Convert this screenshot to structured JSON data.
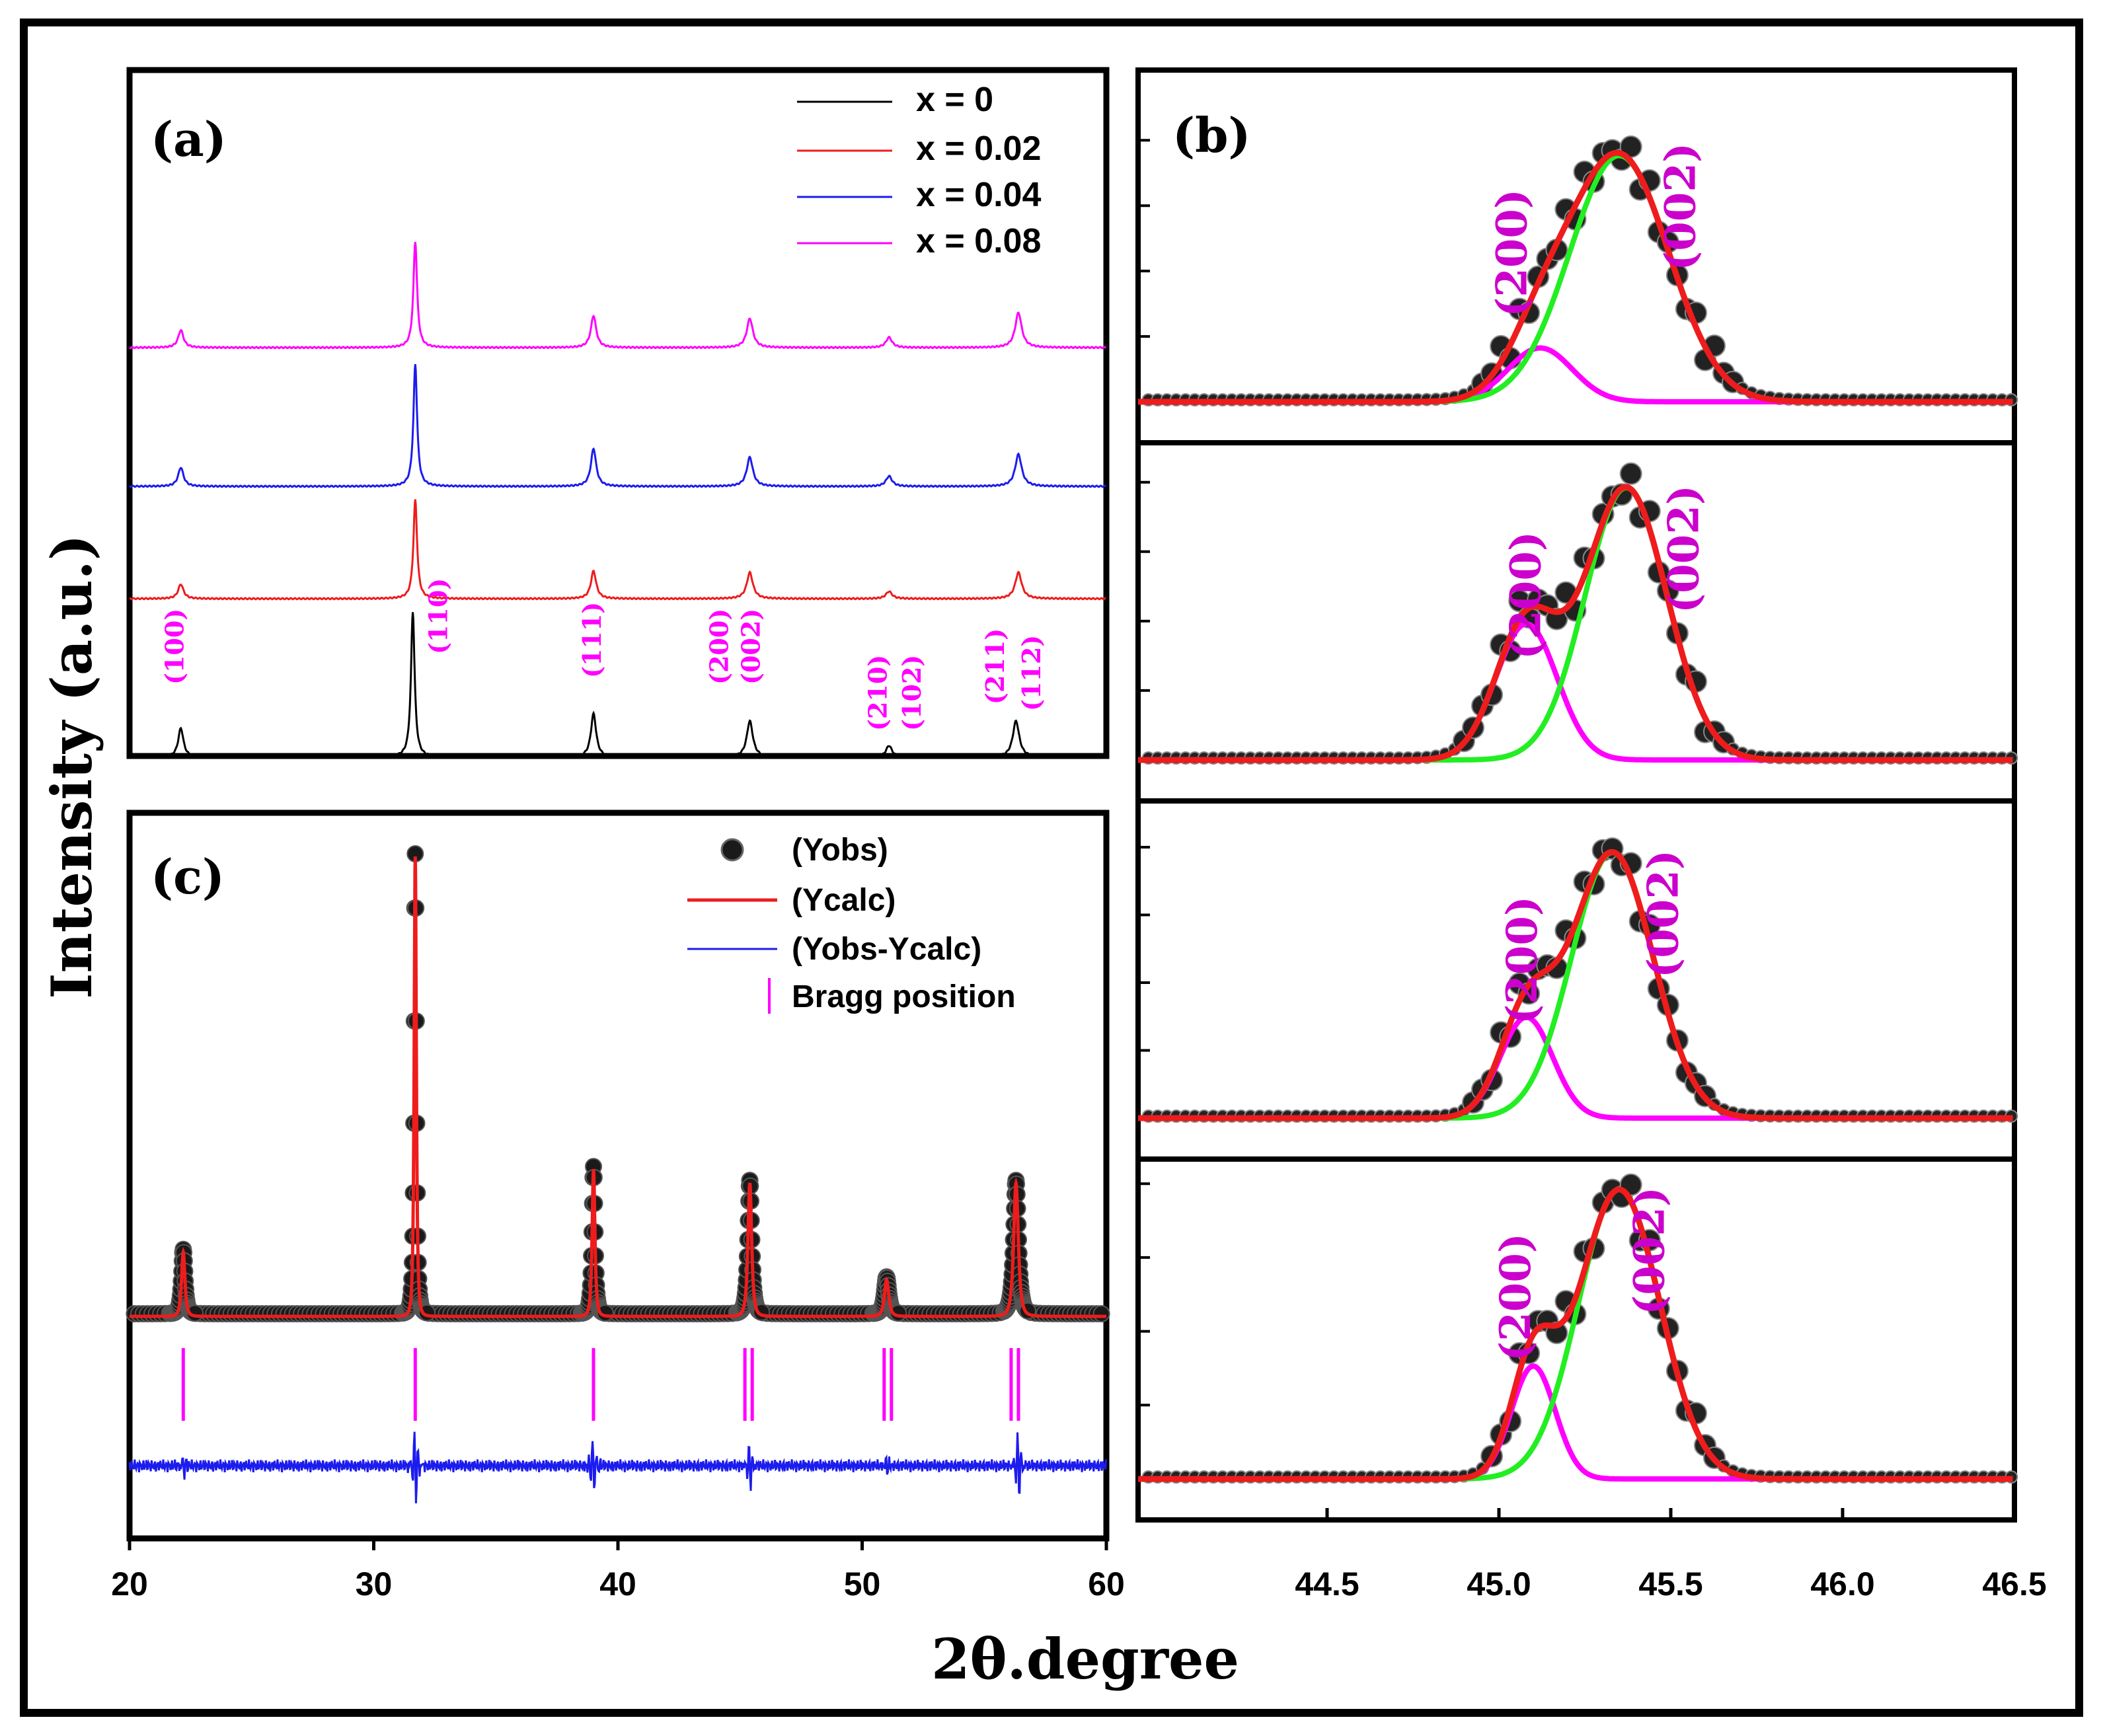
{
  "figure": {
    "ylabel": "Intensity (a.u.)",
    "xlabel": "2θ.degree"
  },
  "chart_data": [
    {
      "id": "a",
      "panel_label": "(a)",
      "type": "line",
      "xlim": [
        20,
        60
      ],
      "legend": [
        "x = 0",
        "x = 0.02",
        "x = 0.04",
        "x = 0.08"
      ],
      "colors": [
        "#000000",
        "#ee1c1c",
        "#1c1cee",
        "#ff00ff"
      ],
      "series": [
        {
          "name": "x = 0",
          "peaks": [
            [
              22.1,
              0.2
            ],
            [
              31.6,
              1.0
            ],
            [
              39.0,
              0.3
            ],
            [
              45.4,
              0.25
            ],
            [
              51.1,
              0.08
            ],
            [
              56.3,
              0.25
            ]
          ]
        },
        {
          "name": "x = 0.02",
          "peaks": [
            [
              22.1,
              0.1
            ],
            [
              31.7,
              0.68
            ],
            [
              39.0,
              0.19
            ],
            [
              45.4,
              0.18
            ],
            [
              51.1,
              0.05
            ],
            [
              56.4,
              0.18
            ]
          ]
        },
        {
          "name": "x = 0.04",
          "peaks": [
            [
              22.1,
              0.13
            ],
            [
              31.7,
              0.84
            ],
            [
              39.0,
              0.26
            ],
            [
              45.4,
              0.2
            ],
            [
              51.1,
              0.07
            ],
            [
              56.4,
              0.22
            ]
          ]
        },
        {
          "name": "x = 0.08",
          "peaks": [
            [
              22.1,
              0.12
            ],
            [
              31.7,
              0.73
            ],
            [
              39.0,
              0.22
            ],
            [
              45.4,
              0.2
            ],
            [
              51.1,
              0.07
            ],
            [
              56.4,
              0.24
            ]
          ]
        }
      ],
      "annotations": [
        {
          "text": "(100)",
          "x": 22.2
        },
        {
          "text": "(110)",
          "x": 33.0
        },
        {
          "text": "(111)",
          "x": 39.3
        },
        {
          "text": "(200)",
          "x": 44.5
        },
        {
          "text": "(002)",
          "x": 45.8
        },
        {
          "text": "(210)",
          "x": 51.0
        },
        {
          "text": "(102)",
          "x": 52.4
        },
        {
          "text": "(211)",
          "x": 55.8
        },
        {
          "text": "(112)",
          "x": 57.3
        }
      ]
    },
    {
      "id": "b",
      "panel_label": "(b)",
      "type": "line+scatter",
      "xlim": [
        43.95,
        46.5
      ],
      "xticks": [
        44.5,
        45.0,
        45.5,
        46.0,
        46.5
      ],
      "xtick_labels": [
        "44.5",
        "45.0",
        "45.5",
        "46.0",
        "46.5"
      ],
      "peak_labels": [
        "(200)",
        "(002)"
      ],
      "components": {
        "fit": "#ee1c1c",
        "peak_200": "#ff00ff",
        "peak_002": "#22ee22",
        "observed": "#222222"
      },
      "subpanels": [
        {
          "peak_200": {
            "center": 45.12,
            "fwhm": 0.22,
            "height": 0.21
          },
          "peak_002": {
            "center": 45.35,
            "fwhm": 0.34,
            "height": 0.96
          },
          "label_200_x": 45.08,
          "label_002_x": 45.57
        },
        {
          "peak_200": {
            "center": 45.08,
            "fwhm": 0.21,
            "height": 0.5
          },
          "peak_002": {
            "center": 45.37,
            "fwhm": 0.28,
            "height": 1.0
          },
          "label_200_x": 45.12,
          "label_002_x": 45.58
        },
        {
          "peak_200": {
            "center": 45.08,
            "fwhm": 0.18,
            "height": 0.38
          },
          "peak_002": {
            "center": 45.33,
            "fwhm": 0.28,
            "height": 1.0
          },
          "label_200_x": 45.11,
          "label_002_x": 45.52
        },
        {
          "peak_200": {
            "center": 45.1,
            "fwhm": 0.15,
            "height": 0.39
          },
          "peak_002": {
            "center": 45.35,
            "fwhm": 0.28,
            "height": 1.0
          },
          "label_200_x": 45.09,
          "label_002_x": 45.48
        }
      ]
    },
    {
      "id": "c",
      "panel_label": "(c)",
      "type": "line+scatter",
      "xlim": [
        20,
        60
      ],
      "xticks": [
        20,
        30,
        40,
        50,
        60
      ],
      "xtick_labels": [
        "20",
        "30",
        "40",
        "50",
        "60"
      ],
      "legend": [
        "(Yobs)",
        "(Ycalc)",
        "(Yobs-Ycalc)",
        "Bragg position"
      ],
      "colors": {
        "obs": "#111111",
        "calc": "#ee1c1c",
        "diff": "#1c1cee",
        "bragg": "#ff00ff"
      },
      "peaks": [
        [
          22.2,
          0.14
        ],
        [
          31.7,
          1.0
        ],
        [
          39.0,
          0.32
        ],
        [
          45.4,
          0.29
        ],
        [
          51.0,
          0.08
        ],
        [
          56.3,
          0.29
        ]
      ],
      "bragg_positions": [
        22.2,
        31.7,
        39.0,
        45.2,
        45.5,
        50.9,
        51.2,
        56.1,
        56.4
      ],
      "diff_spikes": [
        [
          22.2,
          0.3
        ],
        [
          31.7,
          1.0
        ],
        [
          39.0,
          0.8
        ],
        [
          45.4,
          0.6
        ],
        [
          51.0,
          0.2
        ],
        [
          56.4,
          0.9
        ]
      ]
    }
  ]
}
